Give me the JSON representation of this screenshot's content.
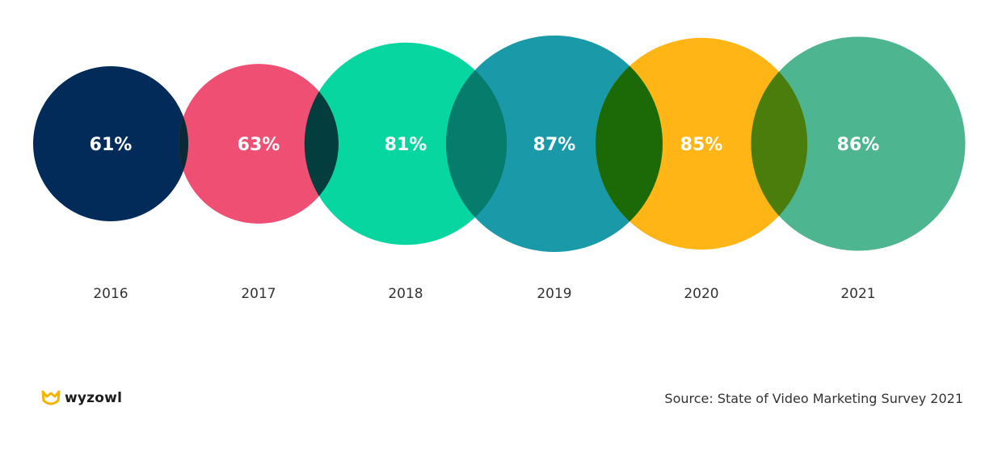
{
  "chart_data": {
    "type": "bubble",
    "categories": [
      "2016",
      "2017",
      "2018",
      "2019",
      "2020",
      "2021"
    ],
    "values": [
      61,
      63,
      81,
      87,
      85,
      86
    ],
    "value_labels": [
      "61%",
      "63%",
      "81%",
      "87%",
      "85%",
      "86%"
    ],
    "colors": [
      "#022b5a",
      "#f04f74",
      "#08d6a0",
      "#1a9aa9",
      "#ffb515",
      "#4db58f"
    ],
    "overlap_colors": [
      "#0b2935",
      "#033d3e",
      "#067c6d",
      "#1c6908",
      "#4a7d0c"
    ]
  },
  "footer": {
    "logo_text": "wyzowl",
    "source": "Source: State of Video Marketing Survey 2021"
  }
}
